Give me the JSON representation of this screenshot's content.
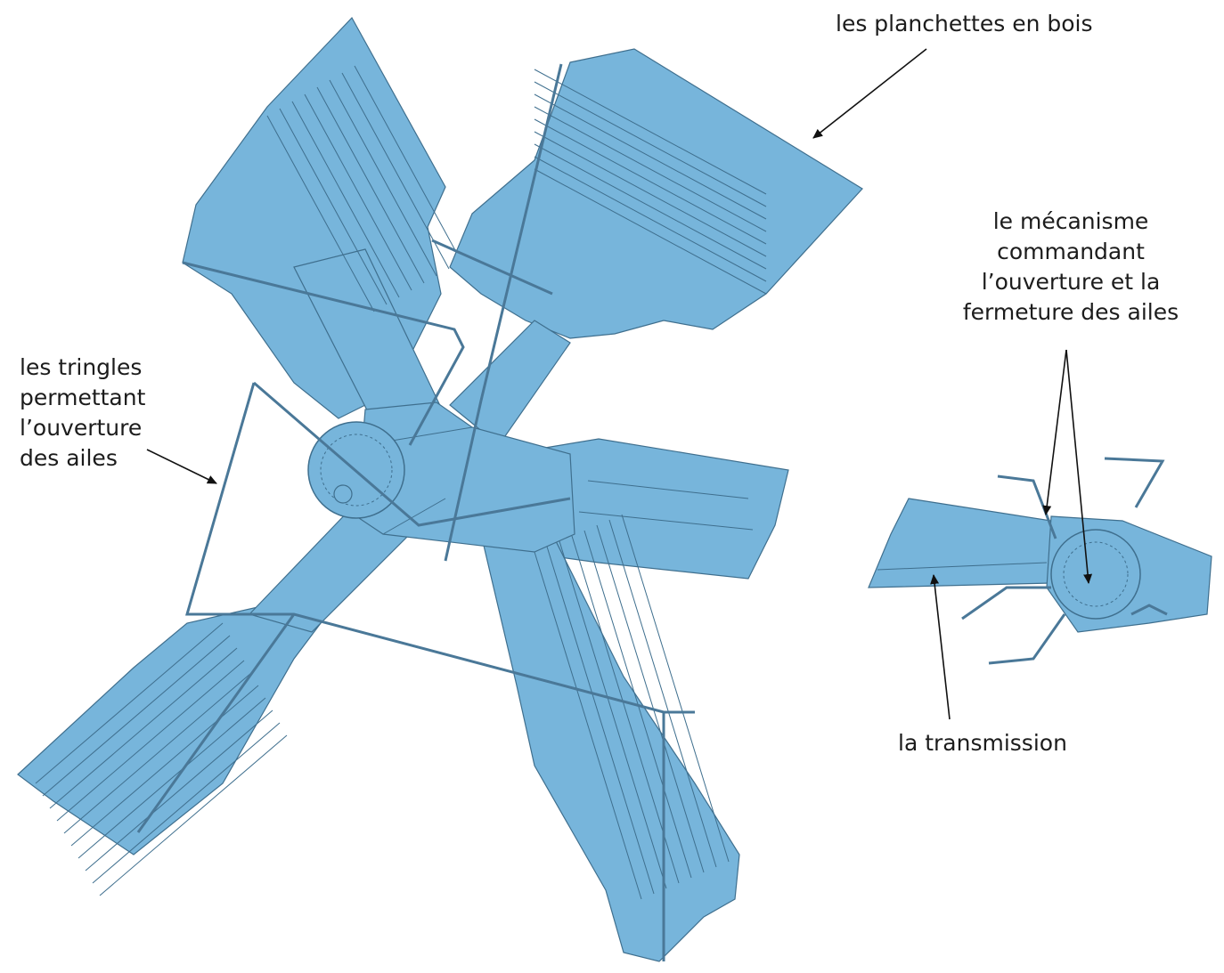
{
  "labels": {
    "planchettes": [
      "les planchettes en bois"
    ],
    "mecanisme": [
      "le mécanisme",
      "commandant",
      "l’ouverture et la",
      "fermeture des ailes"
    ],
    "tringles": [
      "les tringles",
      "permettant",
      "l’ouverture",
      "des ailes"
    ],
    "transmission": [
      "la transmission"
    ]
  },
  "colors": {
    "part_fill": "#77b5db",
    "part_stroke": "#3f6f8e",
    "label_text": "#1c1c1c",
    "arrow": "#111111"
  }
}
